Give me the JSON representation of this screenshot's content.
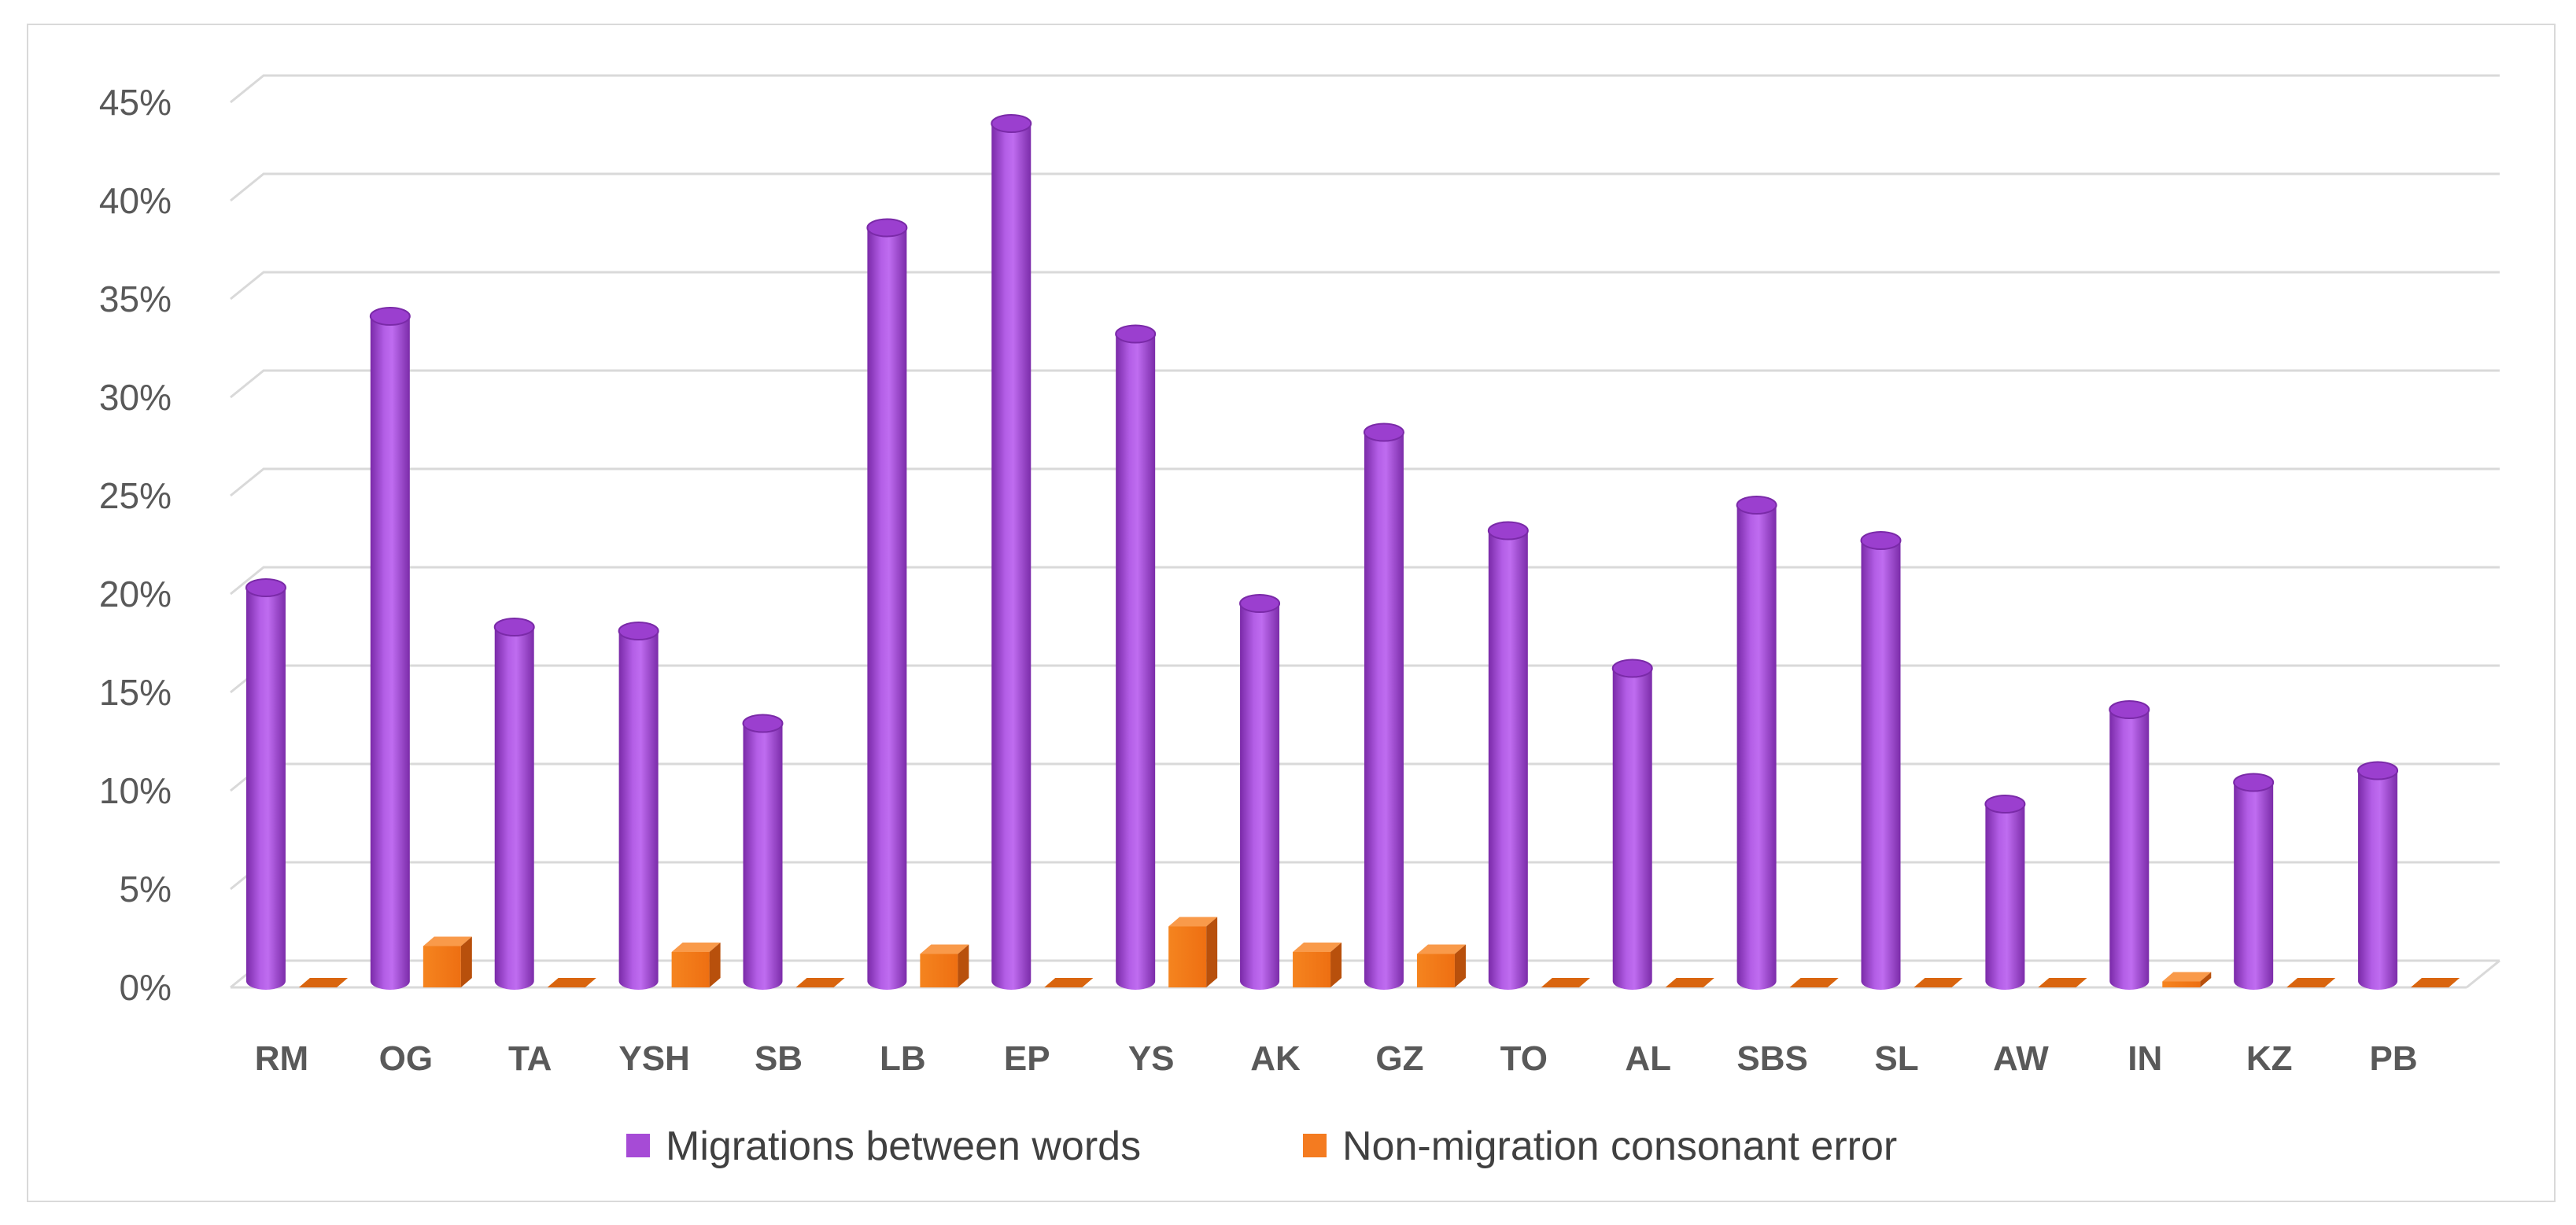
{
  "chart_data": {
    "type": "bar",
    "categories": [
      "RM",
      "OG",
      "TA",
      "YSH",
      "SB",
      "LB",
      "EP",
      "YS",
      "AK",
      "GZ",
      "TO",
      "AL",
      "SBS",
      "SL",
      "AW",
      "IN",
      "KZ",
      "PB"
    ],
    "series": [
      {
        "name": "Migrations between words",
        "color": "#a64bd6",
        "values": [
          20,
          33.8,
          18,
          17.8,
          13.1,
          38.3,
          43.6,
          32.9,
          19.2,
          27.9,
          22.9,
          15.9,
          24.2,
          22.4,
          9,
          13.8,
          10.1,
          10.7
        ]
      },
      {
        "name": "Non-migration consonant error",
        "color": "#f47b20",
        "values": [
          0,
          2.1,
          0,
          1.8,
          0,
          1.7,
          0,
          3.1,
          1.8,
          1.7,
          0,
          0,
          0,
          0,
          0,
          0.3,
          0,
          0
        ]
      }
    ],
    "yticks": [
      "0%",
      "5%",
      "10%",
      "15%",
      "20%",
      "25%",
      "30%",
      "35%",
      "40%",
      "45%"
    ],
    "ylim": [
      0,
      45
    ],
    "grid": true,
    "legend": "bottom",
    "title": "",
    "xlabel": "",
    "ylabel": ""
  }
}
